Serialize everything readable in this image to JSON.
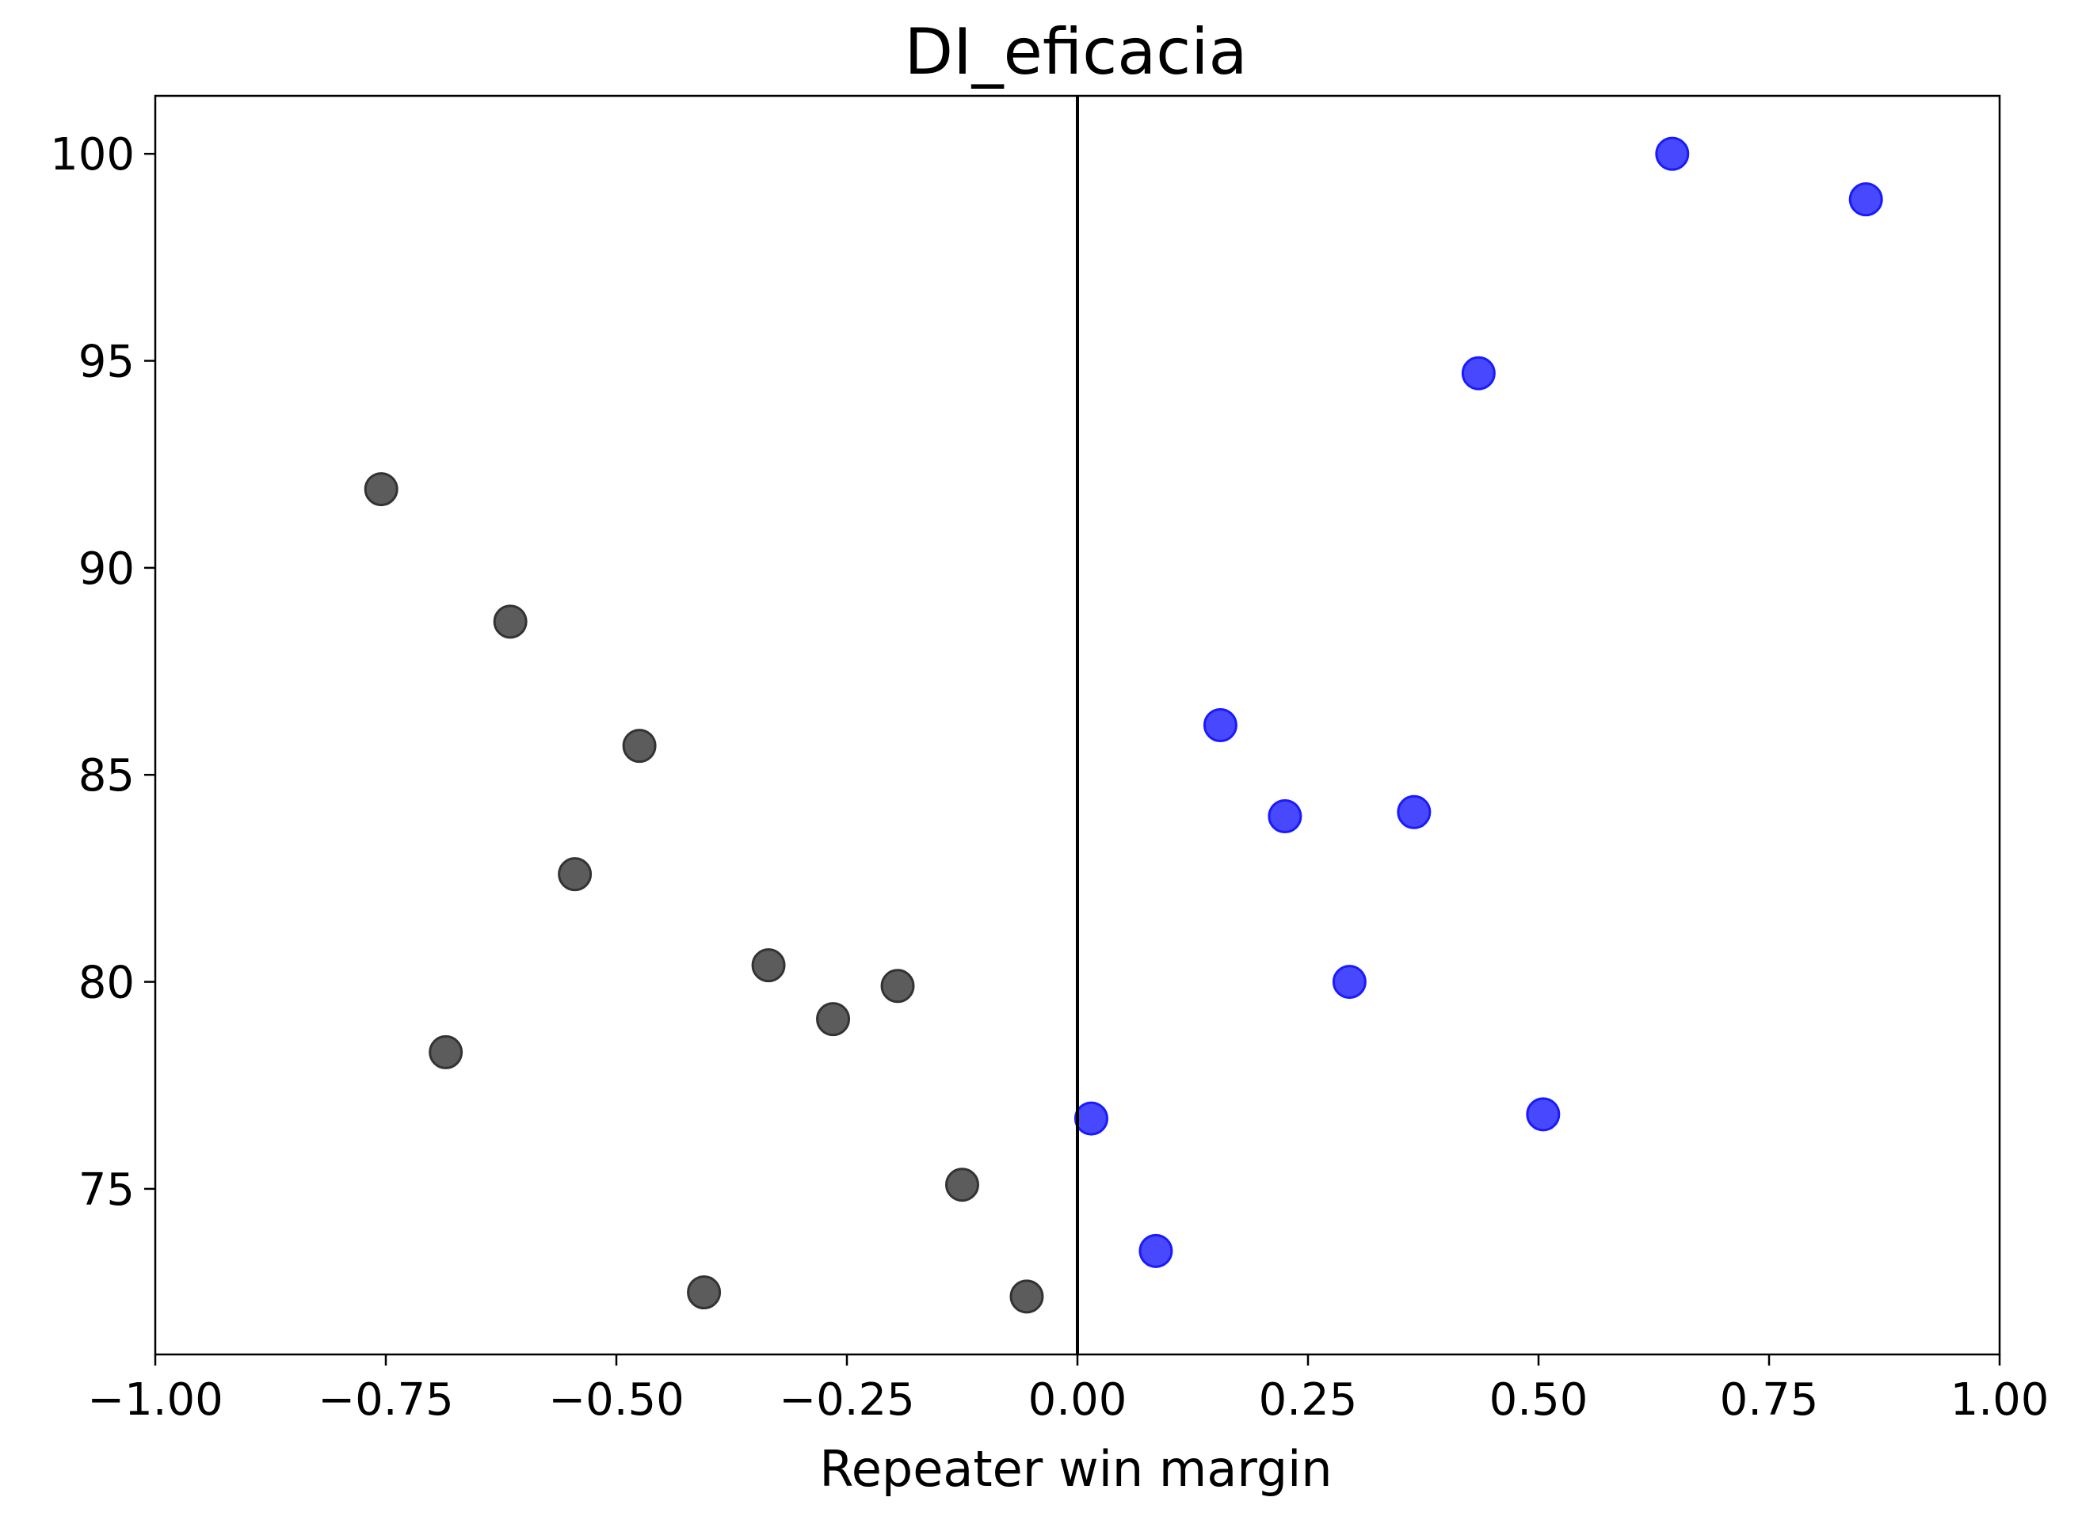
{
  "chart_data": {
    "type": "scatter",
    "title": "DI_eficacia",
    "xlabel": "Repeater win margin",
    "ylabel": "",
    "xlim": [
      -1.0,
      1.0
    ],
    "ylim": [
      71.0,
      101.4
    ],
    "grid": false,
    "x_ticks": [
      -1.0,
      -0.75,
      -0.5,
      -0.25,
      0.0,
      0.25,
      0.5,
      0.75,
      1.0
    ],
    "x_tick_labels": [
      "−1.00",
      "−0.75",
      "−0.50",
      "−0.25",
      "0.00",
      "0.25",
      "0.50",
      "0.75",
      "1.00"
    ],
    "y_ticks": [
      75,
      80,
      85,
      90,
      95,
      100
    ],
    "y_tick_labels": [
      "75",
      "80",
      "85",
      "90",
      "95",
      "100"
    ],
    "reference_line_x": 0.0,
    "colors": {
      "negative": "#333333",
      "positive": "#1a1aff",
      "axis": "#000000"
    },
    "series": [
      {
        "color_key": "negative",
        "points": [
          {
            "x": -0.755,
            "y": 91.9
          },
          {
            "x": -0.615,
            "y": 88.7
          },
          {
            "x": -0.475,
            "y": 85.7
          },
          {
            "x": -0.545,
            "y": 82.6
          },
          {
            "x": -0.335,
            "y": 80.4
          },
          {
            "x": -0.195,
            "y": 79.9
          },
          {
            "x": -0.265,
            "y": 79.1
          },
          {
            "x": -0.685,
            "y": 78.3
          },
          {
            "x": -0.125,
            "y": 75.1
          },
          {
            "x": -0.405,
            "y": 72.5
          },
          {
            "x": -0.055,
            "y": 72.4
          }
        ]
      },
      {
        "color_key": "positive",
        "points": [
          {
            "x": 0.645,
            "y": 100.0
          },
          {
            "x": 0.855,
            "y": 98.9
          },
          {
            "x": 0.435,
            "y": 94.7
          },
          {
            "x": 0.155,
            "y": 86.2
          },
          {
            "x": 0.225,
            "y": 84.0
          },
          {
            "x": 0.365,
            "y": 84.1
          },
          {
            "x": 0.295,
            "y": 80.0
          },
          {
            "x": 0.505,
            "y": 76.8
          },
          {
            "x": 0.015,
            "y": 76.7
          },
          {
            "x": 0.085,
            "y": 73.5
          }
        ]
      }
    ]
  }
}
